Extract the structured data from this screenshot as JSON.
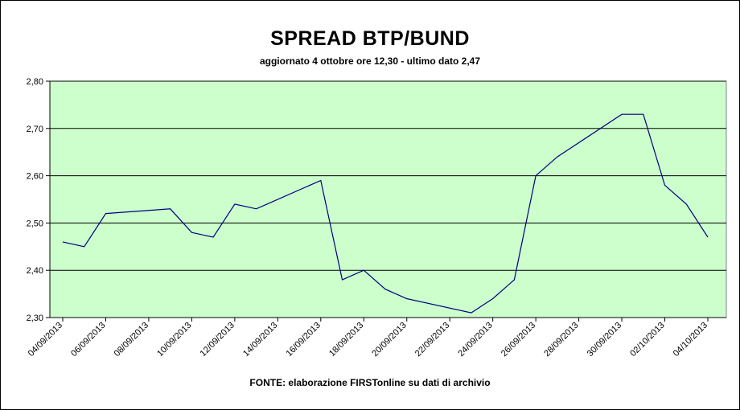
{
  "chart_data": {
    "type": "line",
    "title": "SPREAD BTP/BUND",
    "subtitle": "aggiornato 4 ottobre ore 12,30 - ultimo dato 2,47",
    "source": "FONTE: elaborazione FIRSTonline su dati di archivio",
    "xlabel": "",
    "ylabel": "",
    "ylim": [
      2.3,
      2.8
    ],
    "yticks": [
      "2,30",
      "2,40",
      "2,50",
      "2,60",
      "2,70",
      "2,80"
    ],
    "xticks": [
      "04/09/2013",
      "06/09/2013",
      "08/09/2013",
      "10/09/2013",
      "12/09/2013",
      "14/09/2013",
      "16/09/2013",
      "18/09/2013",
      "20/09/2013",
      "22/09/2013",
      "24/09/2013",
      "26/09/2013",
      "28/09/2013",
      "30/09/2013",
      "02/10/2013",
      "04/10/2013"
    ],
    "grid": true,
    "plot_background": "#ccffcc",
    "line_color": "#000080",
    "grid_color": "#000000",
    "series": [
      {
        "x": [
          "04/09/2013",
          "05/09/2013",
          "06/09/2013",
          "09/09/2013",
          "10/09/2013",
          "11/09/2013",
          "12/09/2013",
          "13/09/2013",
          "16/09/2013",
          "17/09/2013",
          "18/09/2013",
          "19/09/2013",
          "20/09/2013",
          "23/09/2013",
          "24/09/2013",
          "25/09/2013",
          "26/09/2013",
          "27/09/2013",
          "30/09/2013",
          "01/10/2013",
          "02/10/2013",
          "03/10/2013",
          "04/10/2013"
        ],
        "values": [
          2.46,
          2.45,
          2.52,
          2.53,
          2.48,
          2.47,
          2.54,
          2.53,
          2.59,
          2.38,
          2.4,
          2.36,
          2.34,
          2.31,
          2.34,
          2.38,
          2.6,
          2.64,
          2.73,
          2.73,
          2.58,
          2.54,
          2.47
        ]
      }
    ]
  }
}
